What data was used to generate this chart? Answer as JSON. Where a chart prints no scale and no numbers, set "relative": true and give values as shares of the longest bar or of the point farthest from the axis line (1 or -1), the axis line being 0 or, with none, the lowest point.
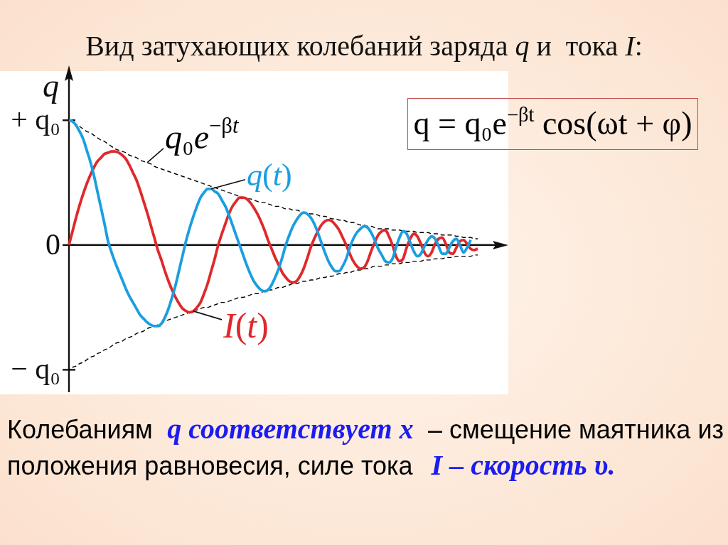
{
  "chart_data": {
    "type": "line",
    "title": "Вид затухающих колебаний заряда q и  тока I:",
    "ylabel": "q",
    "relative": true,
    "categories": [
      null,
      null,
      null,
      null,
      null,
      null,
      null,
      null,
      null,
      null,
      null,
      null,
      null,
      null,
      null,
      null,
      null,
      null,
      null,
      null,
      null,
      null,
      null,
      null,
      null,
      null,
      null,
      null,
      null,
      null,
      null,
      null,
      null,
      null,
      null,
      null,
      null,
      null,
      null,
      null,
      null,
      null,
      null,
      null,
      null,
      null,
      null,
      null,
      null,
      null,
      null,
      null,
      null,
      null,
      null,
      null,
      null,
      null,
      null,
      null,
      null,
      null,
      null,
      null,
      null,
      null,
      null,
      null,
      null,
      null,
      null,
      null,
      null,
      null,
      null,
      null,
      null,
      null,
      null,
      null,
      null,
      null,
      null,
      null,
      null,
      null,
      null,
      null,
      null,
      null,
      null,
      null,
      null,
      null,
      null,
      null,
      null,
      null,
      null,
      null,
      null,
      null,
      null,
      null,
      null,
      null,
      null,
      null,
      null,
      null,
      null,
      null,
      null,
      null,
      null,
      null
    ],
    "marker": "none",
    "series": [
      {
        "name": "q₀e$^{−βt}$",
        "color": "#000000",
        "line_style": "dashed",
        "values": [
          1.0,
          0.98,
          0.97,
          0.95,
          0.93,
          0.91,
          0.9,
          0.88,
          0.86,
          0.84,
          0.83,
          0.81,
          0.79,
          0.77,
          0.76,
          0.75,
          0.74,
          0.72,
          0.71,
          0.7,
          0.68,
          0.67,
          0.66,
          0.65,
          0.63,
          0.62,
          0.61,
          0.6,
          0.59,
          0.58,
          0.57,
          0.56,
          0.55,
          0.54,
          0.53,
          0.52,
          0.51,
          0.5,
          0.49,
          0.48,
          0.47,
          0.46,
          0.45,
          0.44,
          0.43,
          0.42,
          0.41,
          0.4,
          0.39,
          0.38,
          0.37,
          0.37,
          0.36,
          0.35,
          0.34,
          0.34,
          0.33,
          0.32,
          0.31,
          0.31,
          0.3,
          0.29,
          0.29,
          0.28,
          0.28,
          0.27,
          0.26,
          0.26,
          0.25,
          0.25,
          0.24,
          0.23,
          0.23,
          0.22,
          0.21,
          0.21,
          0.2,
          0.2,
          0.19,
          0.18,
          0.18,
          0.17,
          0.16,
          0.16,
          0.15,
          0.15,
          0.14,
          0.13,
          0.13,
          0.13,
          0.13,
          0.12,
          0.12,
          0.12,
          0.11,
          0.11,
          0.11,
          0.11,
          0.1,
          0.1,
          0.1,
          0.1,
          0.09,
          0.09,
          0.09,
          0.08,
          0.08,
          0.08,
          0.08,
          0.07,
          0.07,
          0.06,
          0.06,
          0.06,
          0.05,
          0.05
        ]
      },
      {
        "color": "#000000",
        "line_style": "dashed",
        "values": [
          -1.0,
          -0.98,
          -0.97,
          -0.95,
          -0.94,
          -0.92,
          -0.9,
          -0.89,
          -0.87,
          -0.86,
          -0.84,
          -0.83,
          -0.81,
          -0.79,
          -0.78,
          -0.77,
          -0.75,
          -0.74,
          -0.73,
          -0.71,
          -0.7,
          -0.69,
          -0.67,
          -0.66,
          -0.65,
          -0.64,
          -0.63,
          -0.61,
          -0.6,
          -0.59,
          -0.58,
          -0.57,
          -0.56,
          -0.55,
          -0.54,
          -0.53,
          -0.52,
          -0.51,
          -0.5,
          -0.5,
          -0.49,
          -0.48,
          -0.47,
          -0.46,
          -0.46,
          -0.45,
          -0.44,
          -0.43,
          -0.42,
          -0.42,
          -0.41,
          -0.4,
          -0.39,
          -0.39,
          -0.38,
          -0.37,
          -0.36,
          -0.36,
          -0.35,
          -0.34,
          -0.34,
          -0.33,
          -0.32,
          -0.31,
          -0.31,
          -0.3,
          -0.29,
          -0.29,
          -0.28,
          -0.28,
          -0.27,
          -0.26,
          -0.26,
          -0.25,
          -0.25,
          -0.24,
          -0.23,
          -0.23,
          -0.22,
          -0.22,
          -0.21,
          -0.2,
          -0.2,
          -0.19,
          -0.19,
          -0.18,
          -0.17,
          -0.17,
          -0.17,
          -0.16,
          -0.16,
          -0.15,
          -0.15,
          -0.15,
          -0.14,
          -0.14,
          -0.14,
          -0.13,
          -0.13,
          -0.13,
          -0.12,
          -0.12,
          -0.12,
          -0.11,
          -0.11,
          -0.11,
          -0.1,
          -0.1,
          -0.1,
          -0.09,
          -0.09,
          -0.09,
          -0.09,
          -0.09,
          -0.08,
          -0.08
        ]
      },
      {
        "name": "I(t)",
        "color": "#e0282a",
        "line_style": "solid",
        "values": [
          0.0,
          0.11,
          0.22,
          0.32,
          0.41,
          0.49,
          0.56,
          0.62,
          0.67,
          0.7,
          0.73,
          0.74,
          0.75,
          0.75,
          0.74,
          0.72,
          0.69,
          0.64,
          0.58,
          0.52,
          0.44,
          0.35,
          0.26,
          0.16,
          0.06,
          -0.04,
          -0.12,
          -0.21,
          -0.29,
          -0.36,
          -0.42,
          -0.47,
          -0.51,
          -0.53,
          -0.54,
          -0.53,
          -0.5,
          -0.46,
          -0.39,
          -0.31,
          -0.21,
          -0.11,
          0.0,
          0.09,
          0.17,
          0.25,
          0.31,
          0.35,
          0.38,
          0.38,
          0.37,
          0.34,
          0.3,
          0.25,
          0.19,
          0.12,
          0.04,
          -0.03,
          -0.1,
          -0.16,
          -0.22,
          -0.26,
          -0.29,
          -0.3,
          -0.29,
          -0.25,
          -0.19,
          -0.11,
          -0.02,
          0.05,
          0.11,
          0.16,
          0.19,
          0.2,
          0.19,
          0.16,
          0.12,
          0.06,
          0.0,
          -0.07,
          -0.13,
          -0.17,
          -0.19,
          -0.18,
          -0.13,
          -0.05,
          0.02,
          0.08,
          0.11,
          0.12,
          0.07,
          0.0,
          -0.09,
          -0.13,
          -0.11,
          -0.02,
          0.05,
          0.09,
          0.07,
          0.01,
          -0.06,
          -0.09,
          -0.06,
          0.01,
          0.05,
          0.06,
          0.01,
          -0.06,
          -0.07,
          -0.02,
          0.03,
          0.04,
          0.01,
          -0.03,
          -0.04,
          -0.03
        ]
      },
      {
        "name": "q(t)",
        "color": "#1a9ee0",
        "line_style": "solid",
        "values": [
          1.0,
          0.99,
          0.96,
          0.91,
          0.85,
          0.76,
          0.67,
          0.56,
          0.43,
          0.3,
          0.17,
          0.03,
          -0.06,
          -0.14,
          -0.21,
          -0.28,
          -0.35,
          -0.41,
          -0.46,
          -0.51,
          -0.56,
          -0.59,
          -0.62,
          -0.64,
          -0.65,
          -0.65,
          -0.63,
          -0.58,
          -0.51,
          -0.42,
          -0.32,
          -0.2,
          -0.08,
          0.04,
          0.14,
          0.23,
          0.31,
          0.38,
          0.42,
          0.45,
          0.45,
          0.43,
          0.41,
          0.36,
          0.31,
          0.24,
          0.16,
          0.08,
          0.0,
          -0.08,
          -0.16,
          -0.23,
          -0.29,
          -0.33,
          -0.36,
          -0.37,
          -0.36,
          -0.32,
          -0.26,
          -0.19,
          -0.1,
          0.0,
          0.08,
          0.15,
          0.2,
          0.24,
          0.26,
          0.25,
          0.22,
          0.17,
          0.1,
          0.02,
          -0.06,
          -0.13,
          -0.18,
          -0.21,
          -0.21,
          -0.17,
          -0.11,
          -0.02,
          0.05,
          0.1,
          0.13,
          0.15,
          0.14,
          0.1,
          0.04,
          -0.03,
          -0.08,
          -0.13,
          -0.14,
          -0.11,
          -0.02,
          0.06,
          0.11,
          0.09,
          0.02,
          -0.05,
          -0.09,
          -0.07,
          -0.01,
          0.04,
          0.07,
          0.05,
          -0.01,
          -0.07,
          -0.07,
          -0.02,
          0.03,
          0.05,
          0.0,
          -0.06,
          -0.02,
          0.04,
          null,
          null
        ]
      }
    ],
    "annotations": [
      "q = q₀e$^{−βt}$ cos(ωt + φ)",
      "Колебаниям",
      "q соответствует x",
      "– смещение маятника из",
      "положения равновесия, силе тока",
      "I – скорость υ.",
      "+ q₀",
      "0",
      "− q₀"
    ]
  }
}
